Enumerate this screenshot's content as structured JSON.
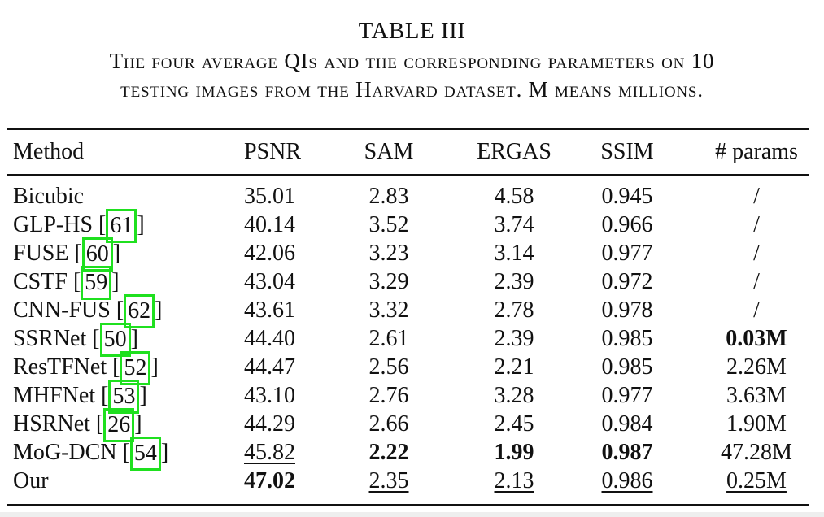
{
  "title": "TABLE III",
  "caption": {
    "line1": "The four average QIs and the corresponding parameters on 10",
    "line2": "testing images from the Harvard dataset. M means millions."
  },
  "columns": [
    "Method",
    "PSNR",
    "SAM",
    "ERGAS",
    "SSIM",
    "# params"
  ],
  "rows": [
    {
      "method": "Bicubic",
      "ref": "",
      "psnr": "35.01",
      "sam": "2.83",
      "ergas": "4.58",
      "ssim": "0.945",
      "params": "/"
    },
    {
      "method": "GLP-HS",
      "ref": "61",
      "psnr": "40.14",
      "sam": "3.52",
      "ergas": "3.74",
      "ssim": "0.966",
      "params": "/"
    },
    {
      "method": "FUSE",
      "ref": "60",
      "psnr": "42.06",
      "sam": "3.23",
      "ergas": "3.14",
      "ssim": "0.977",
      "params": "/"
    },
    {
      "method": "CSTF",
      "ref": "59",
      "psnr": "43.04",
      "sam": "3.29",
      "ergas": "2.39",
      "ssim": "0.972",
      "params": "/"
    },
    {
      "method": "CNN-FUS",
      "ref": "62",
      "psnr": "43.61",
      "sam": "3.32",
      "ergas": "2.78",
      "ssim": "0.978",
      "params": "/"
    },
    {
      "method": "SSRNet",
      "ref": "50",
      "psnr": "44.40",
      "sam": "2.61",
      "ergas": "2.39",
      "ssim": "0.985",
      "params": "0.03M"
    },
    {
      "method": "ResTFNet",
      "ref": "52",
      "psnr": "44.47",
      "sam": "2.56",
      "ergas": "2.21",
      "ssim": "0.985",
      "params": "2.26M"
    },
    {
      "method": "MHFNet",
      "ref": "53",
      "psnr": "43.10",
      "sam": "2.76",
      "ergas": "3.28",
      "ssim": "0.977",
      "params": "3.63M"
    },
    {
      "method": "HSRNet",
      "ref": "26",
      "psnr": "44.29",
      "sam": "2.66",
      "ergas": "2.45",
      "ssim": "0.984",
      "params": "1.90M"
    },
    {
      "method": "MoG-DCN",
      "ref": "54",
      "psnr": "45.82",
      "sam": "2.22",
      "ergas": "1.99",
      "ssim": "0.987",
      "params": "47.28M"
    },
    {
      "method": "Our",
      "ref": "",
      "psnr": "47.02",
      "sam": "2.35",
      "ergas": "2.13",
      "ssim": "0.986",
      "params": "0.25M"
    }
  ],
  "highlight_color": "#1fe01f"
}
